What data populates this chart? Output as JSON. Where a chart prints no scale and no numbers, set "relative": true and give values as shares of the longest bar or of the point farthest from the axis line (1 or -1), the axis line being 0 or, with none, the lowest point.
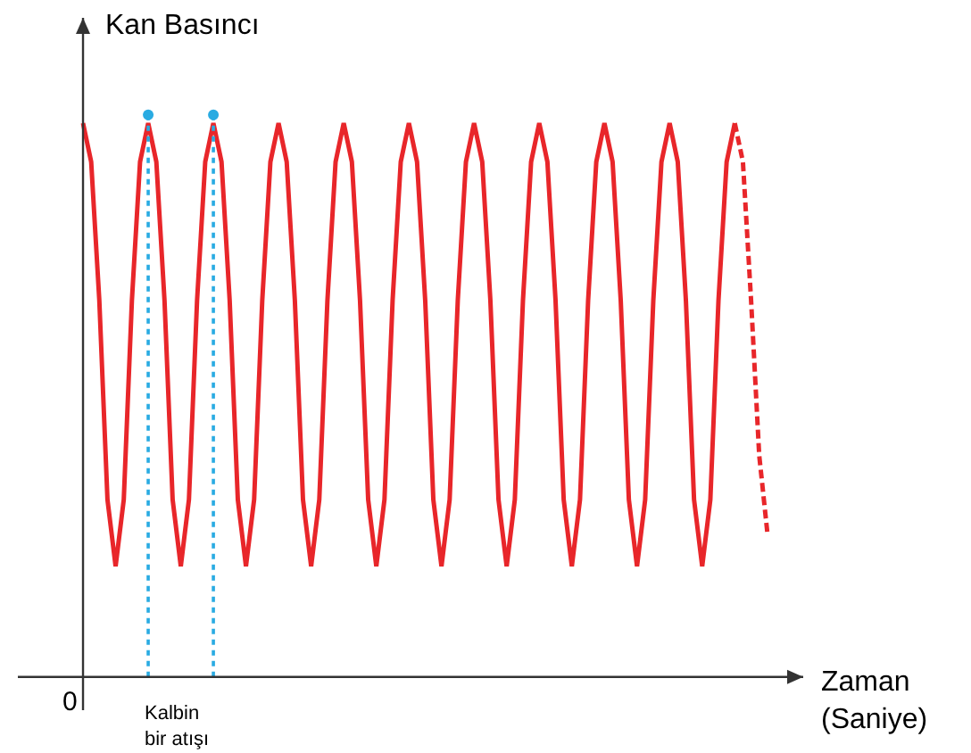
{
  "chart_data": {
    "type": "line",
    "relative": true,
    "ylabel": "Kan Basıncı",
    "xlabel": "Zaman\n(Saniye)",
    "annotations": [
      "0",
      "Kalbin\nbir atışı"
    ],
    "marker": "none",
    "categories": [
      null,
      null,
      null,
      null,
      null,
      null,
      null,
      null,
      null,
      null,
      null,
      null,
      null,
      null,
      null,
      null,
      null,
      null,
      null,
      null,
      null,
      null,
      null,
      null,
      null,
      null,
      null,
      null,
      null,
      null,
      null,
      null,
      null,
      null,
      null,
      null,
      null,
      null,
      null,
      null,
      null,
      null,
      null,
      null,
      null,
      null,
      null,
      null,
      null,
      null,
      null,
      null,
      null,
      null,
      null,
      null,
      null,
      null,
      null,
      null,
      null,
      null,
      null,
      null,
      null,
      null,
      null,
      null,
      null,
      null,
      null,
      null,
      null,
      null,
      null,
      null,
      null,
      null,
      null,
      null,
      null,
      null,
      null,
      null,
      null
    ],
    "series": [
      {
        "color": "#e8262a",
        "line_style": "solid",
        "values": [
          1,
          0.93,
          0.68,
          0.32,
          0.2,
          0.32,
          0.68,
          0.93,
          1,
          0.93,
          0.68,
          0.32,
          0.2,
          0.32,
          0.68,
          0.93,
          1,
          0.93,
          0.68,
          0.32,
          0.2,
          0.32,
          0.68,
          0.93,
          1,
          0.93,
          0.68,
          0.32,
          0.2,
          0.32,
          0.68,
          0.93,
          1,
          0.93,
          0.68,
          0.32,
          0.2,
          0.32,
          0.68,
          0.93,
          1,
          0.93,
          0.68,
          0.32,
          0.2,
          0.32,
          0.68,
          0.93,
          1,
          0.93,
          0.68,
          0.32,
          0.2,
          0.32,
          0.68,
          0.93,
          1,
          0.93,
          0.68,
          0.32,
          0.2,
          0.32,
          0.68,
          0.93,
          1,
          0.93,
          0.68,
          0.32,
          0.2,
          0.32,
          0.68,
          0.93,
          1,
          0.93,
          0.68,
          0.32,
          0.2,
          0.32,
          0.68,
          0.93,
          1,
          null,
          null,
          null,
          null
        ]
      },
      {
        "color": "#e8262a",
        "line_style": "dashed",
        "values": [
          null,
          null,
          null,
          null,
          null,
          null,
          null,
          null,
          null,
          null,
          null,
          null,
          null,
          null,
          null,
          null,
          null,
          null,
          null,
          null,
          null,
          null,
          null,
          null,
          null,
          null,
          null,
          null,
          null,
          null,
          null,
          null,
          null,
          null,
          null,
          null,
          null,
          null,
          null,
          null,
          null,
          null,
          null,
          null,
          null,
          null,
          null,
          null,
          null,
          null,
          null,
          null,
          null,
          null,
          null,
          null,
          null,
          null,
          null,
          null,
          null,
          null,
          null,
          null,
          null,
          null,
          null,
          null,
          null,
          null,
          null,
          null,
          null,
          null,
          null,
          null,
          null,
          null,
          null,
          null,
          1,
          0.93,
          0.68,
          0.4,
          0.26
        ]
      }
    ]
  }
}
